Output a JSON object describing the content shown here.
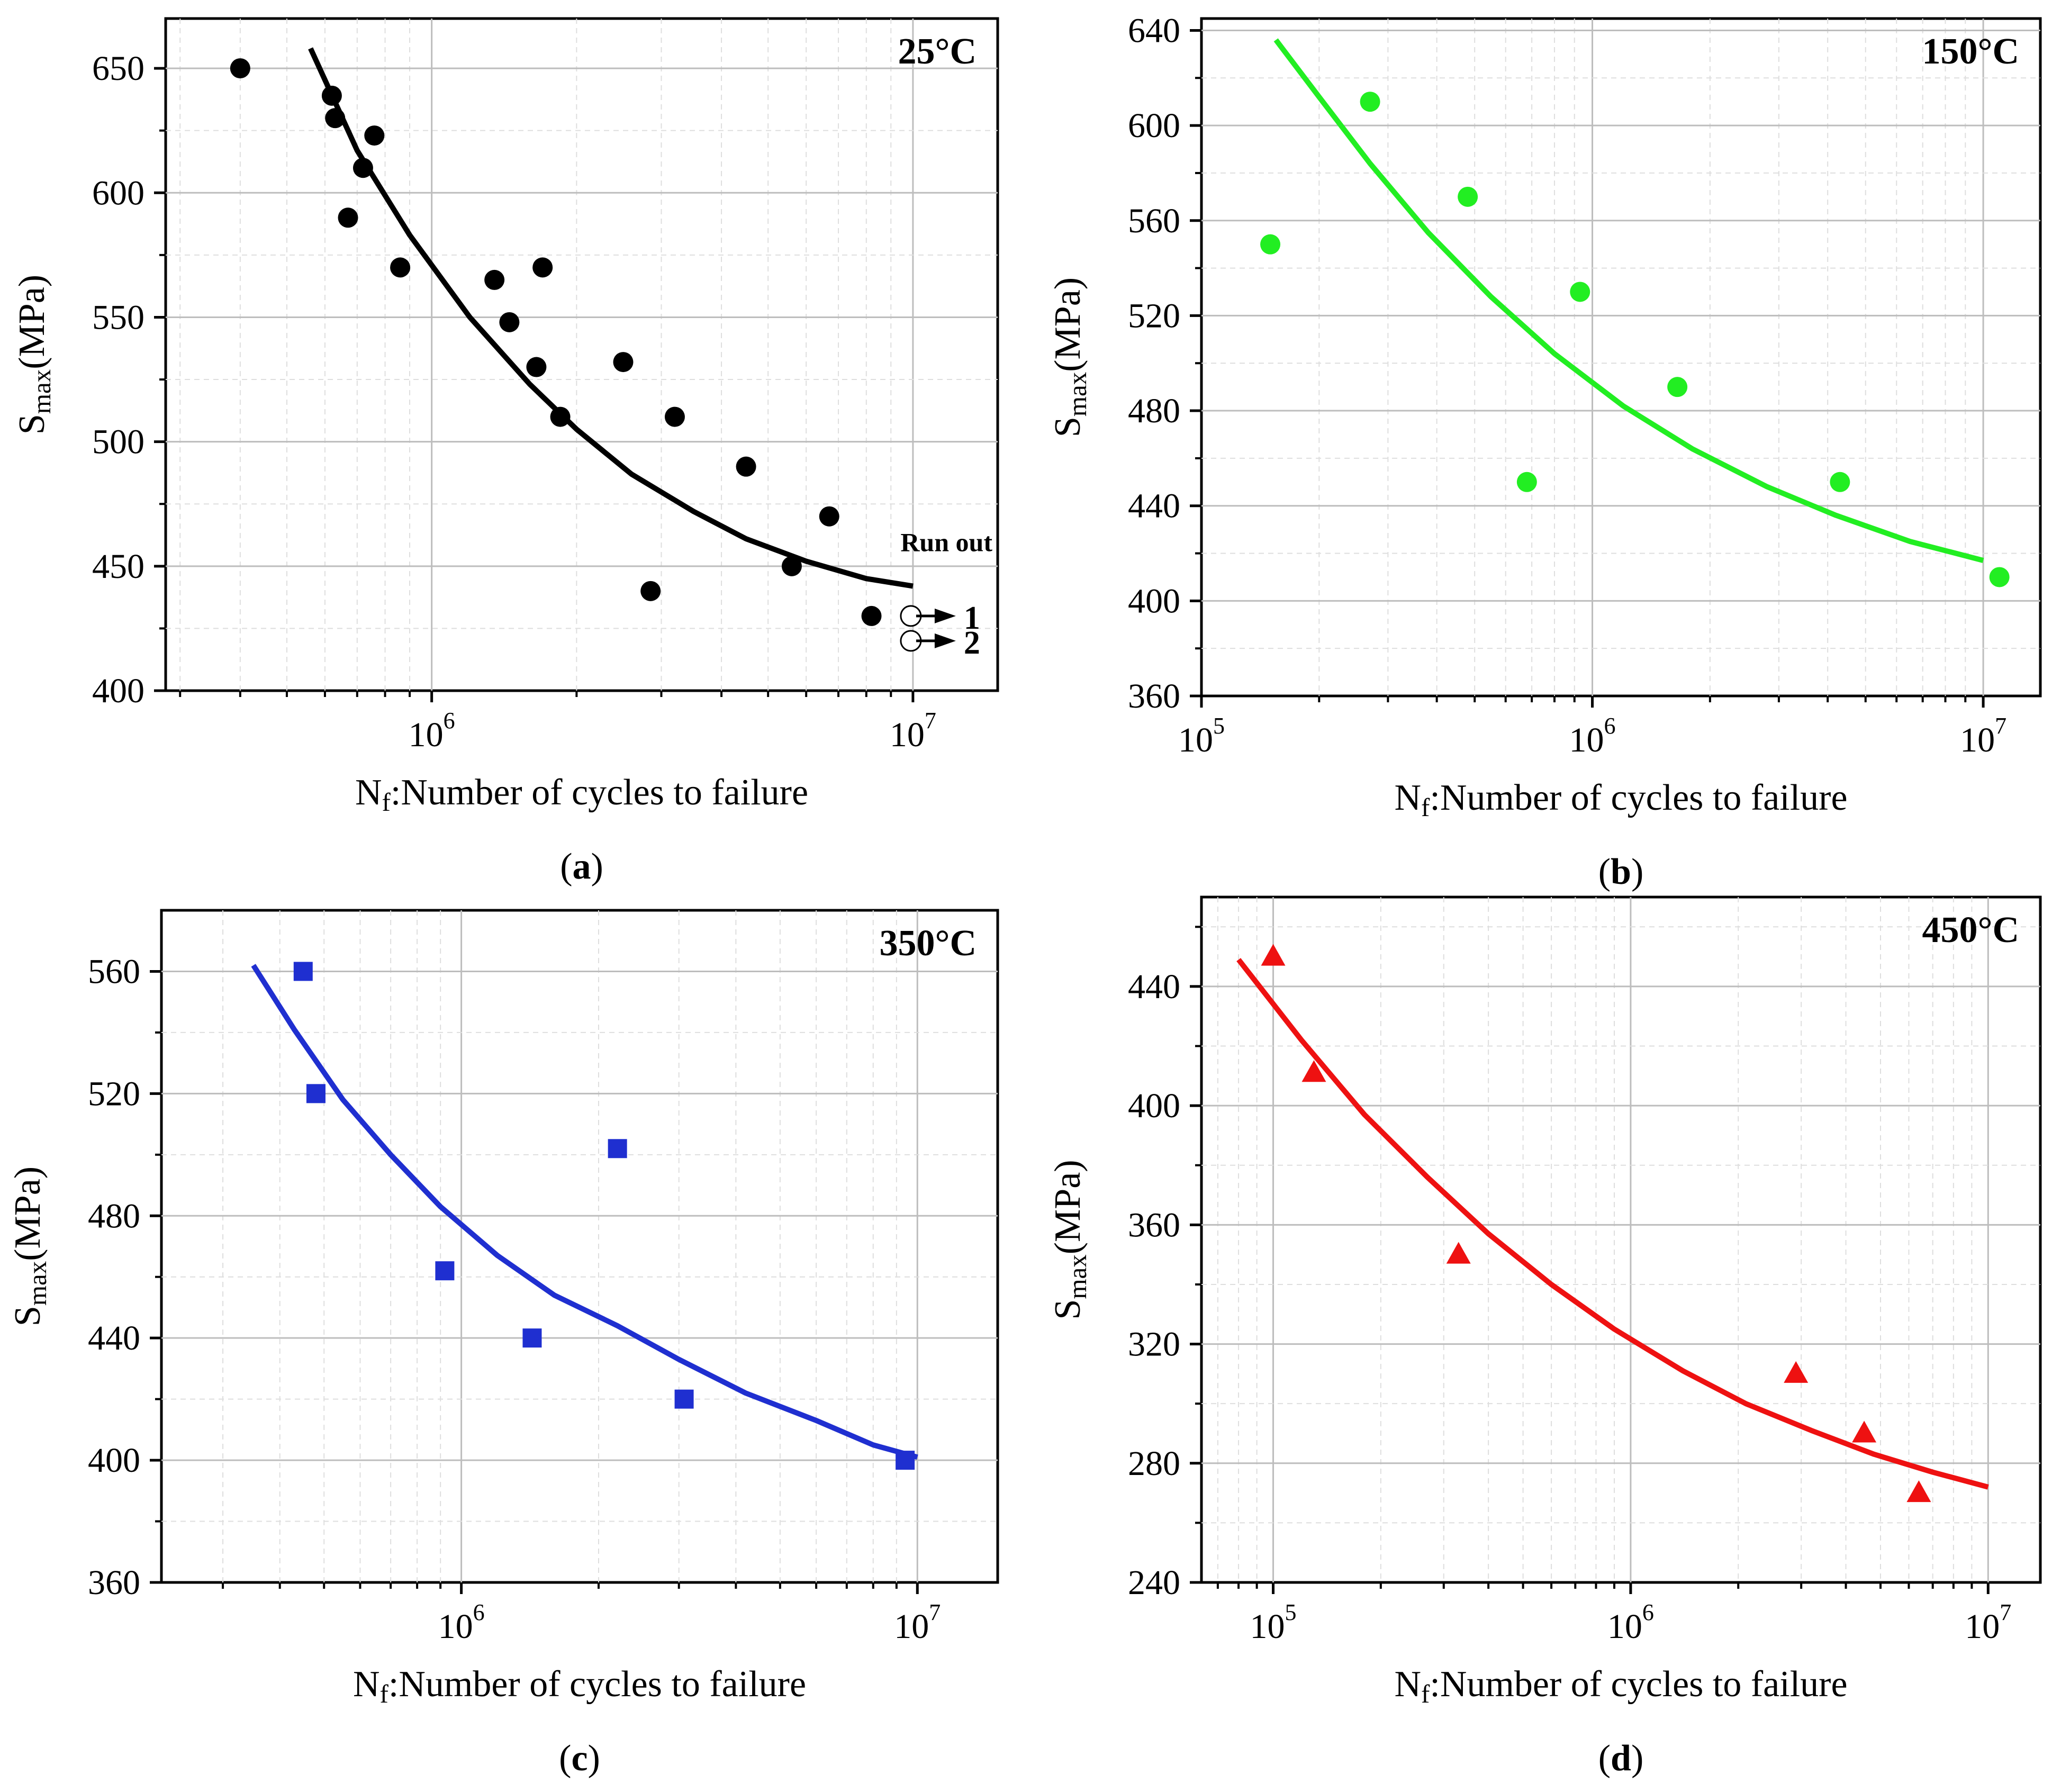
{
  "chart_data": [
    {
      "type": "scatter",
      "panel_label": "a",
      "temperature_label": "25°C",
      "xlabel_main": "N",
      "xlabel_sub": "f",
      "xlabel_rest": ":Number of cycles to failure",
      "ylabel_main": "S",
      "ylabel_sub": "max",
      "ylabel_rest": "(MPa)",
      "xscale": "log",
      "xlim": [
        280000,
        15000000
      ],
      "ylim": [
        400,
        670
      ],
      "yticks": [
        400,
        450,
        500,
        550,
        600,
        650
      ],
      "xticks": [
        1000000,
        10000000
      ],
      "xtick_bases": [
        "10",
        "10"
      ],
      "xtick_exps": [
        "6",
        "7"
      ],
      "color": "#000000",
      "marker": "circle",
      "grid": true,
      "x": [
        400000,
        620000,
        630000,
        670000,
        720000,
        760000,
        860000,
        1350000,
        1450000,
        1650000,
        1700000,
        1850000,
        2500000,
        2850000,
        3200000,
        4500000,
        5600000,
        6700000,
        8200000
      ],
      "y": [
        650,
        639,
        630,
        590,
        610,
        623,
        570,
        565,
        548,
        530,
        570,
        510,
        532,
        440,
        510,
        490,
        450,
        470,
        430
      ],
      "fit": {
        "x": [
          560000,
          700000,
          900000,
          1200000,
          1600000,
          2000000,
          2600000,
          3500000,
          4500000,
          6000000,
          8000000,
          10000000
        ],
        "y": [
          658,
          617,
          583,
          550,
          523,
          505,
          487,
          472,
          461,
          452,
          445,
          442
        ]
      },
      "runout": {
        "label": "Run out",
        "x": [
          9900000,
          9900000
        ],
        "y": [
          430,
          420
        ],
        "labels": [
          "1",
          "2"
        ]
      }
    },
    {
      "type": "scatter",
      "panel_label": "b",
      "temperature_label": "150°C",
      "xlabel_main": "N",
      "xlabel_sub": "f",
      "xlabel_rest": ":Number of cycles to failure",
      "ylabel_main": "S",
      "ylabel_sub": "max",
      "ylabel_rest": "(MPa)",
      "xscale": "log",
      "xlim": [
        100000,
        14000000
      ],
      "ylim": [
        360,
        645
      ],
      "yticks": [
        360,
        400,
        440,
        480,
        520,
        560,
        600,
        640
      ],
      "xticks": [
        100000,
        1000000,
        10000000
      ],
      "xtick_bases": [
        "10",
        "10",
        "10"
      ],
      "xtick_exps": [
        "5",
        "6",
        "7"
      ],
      "color": "#22ee22",
      "marker": "circle",
      "grid": true,
      "x": [
        150000,
        270000,
        480000,
        680000,
        930000,
        1650000,
        4300000,
        11000000
      ],
      "y": [
        550,
        610,
        570,
        450,
        530,
        490,
        450,
        410
      ],
      "fit": {
        "x": [
          155000,
          200000,
          270000,
          380000,
          550000,
          800000,
          1200000,
          1800000,
          2800000,
          4200000,
          6500000,
          10000000
        ],
        "y": [
          636,
          612,
          584,
          555,
          528,
          504,
          482,
          464,
          448,
          436,
          425,
          417
        ]
      }
    },
    {
      "type": "scatter",
      "panel_label": "c",
      "temperature_label": "350°C",
      "xlabel_main": "N",
      "xlabel_sub": "f",
      "xlabel_rest": ":Number of cycles to failure",
      "ylabel_main": "S",
      "ylabel_sub": "max",
      "ylabel_rest": "(MPa)",
      "xscale": "log",
      "xlim": [
        220000,
        15000000
      ],
      "ylim": [
        360,
        580
      ],
      "yticks": [
        360,
        400,
        440,
        480,
        520,
        560
      ],
      "xticks": [
        1000000,
        10000000
      ],
      "xtick_bases": [
        "10",
        "10"
      ],
      "xtick_exps": [
        "6",
        "7"
      ],
      "color": "#1f2fd0",
      "marker": "square",
      "grid": true,
      "x": [
        450000,
        480000,
        920000,
        1430000,
        2200000,
        3080000,
        9400000
      ],
      "y": [
        560,
        520,
        462,
        440,
        502,
        420,
        400
      ],
      "fit": {
        "x": [
          350000,
          430000,
          550000,
          700000,
          900000,
          1200000,
          1600000,
          2200000,
          3000000,
          4200000,
          6000000,
          8000000,
          10000000
        ],
        "y": [
          562,
          541,
          518,
          500,
          483,
          467,
          454,
          444,
          433,
          422,
          413,
          405,
          401
        ]
      }
    },
    {
      "type": "scatter",
      "panel_label": "d",
      "temperature_label": "450°C",
      "xlabel_main": "N",
      "xlabel_sub": "f",
      "xlabel_rest": ":Number of cycles to failure",
      "ylabel_main": "S",
      "ylabel_sub": "max",
      "ylabel_rest": "(MPa)",
      "xscale": "log",
      "xlim": [
        63000,
        14000000
      ],
      "ylim": [
        240,
        470
      ],
      "yticks": [
        240,
        280,
        320,
        360,
        400,
        440
      ],
      "xticks": [
        100000,
        1000000,
        10000000
      ],
      "xtick_bases": [
        "10",
        "10",
        "10"
      ],
      "xtick_exps": [
        "5",
        "6",
        "7"
      ],
      "color": "#ee1111",
      "marker": "triangle",
      "grid": true,
      "x": [
        100000,
        130000,
        330000,
        2900000,
        4500000,
        6400000
      ],
      "y": [
        450,
        411,
        350,
        310,
        290,
        270
      ],
      "fit": {
        "x": [
          80000,
          120000,
          180000,
          270000,
          400000,
          600000,
          900000,
          1400000,
          2100000,
          3200000,
          4800000,
          7000000,
          10000000
        ],
        "y": [
          449,
          422,
          397,
          376,
          357,
          340,
          325,
          311,
          300,
          291,
          283,
          277,
          272
        ]
      }
    }
  ]
}
